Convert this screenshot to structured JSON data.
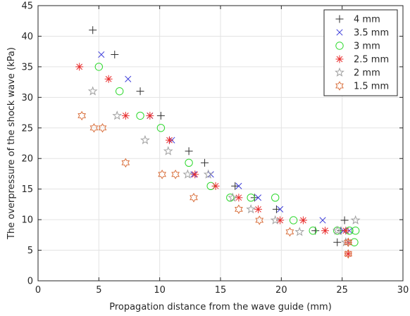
{
  "chart_data": {
    "type": "scatter",
    "title": "",
    "xlabel": "Propagation distance from the wave guide (mm)",
    "ylabel": "The overpressure of the shock wave (kPa)",
    "xlim": [
      0,
      30
    ],
    "ylim": [
      0,
      45
    ],
    "xticks": [
      0,
      5,
      10,
      15,
      20,
      25,
      30
    ],
    "yticks": [
      0,
      5,
      10,
      15,
      20,
      25,
      30,
      35,
      40,
      45
    ],
    "grid": true,
    "legend_position": "top-right",
    "series": [
      {
        "name": "4 mm",
        "marker": "plus",
        "color": "#2f2f2f",
        "points": [
          [
            4.5,
            41
          ],
          [
            6.3,
            37
          ],
          [
            8.4,
            31
          ],
          [
            10.1,
            27
          ],
          [
            12.4,
            21.2
          ],
          [
            13.7,
            19.3
          ],
          [
            16.2,
            15.5
          ],
          [
            17.8,
            13.6
          ],
          [
            19.6,
            11.7
          ],
          [
            22.8,
            8.2
          ],
          [
            24.6,
            6.3
          ],
          [
            24.9,
            8.2
          ],
          [
            25.2,
            9.9
          ]
        ]
      },
      {
        "name": "3.5 mm",
        "marker": "x",
        "color": "#3b3bd9",
        "points": [
          [
            5.2,
            37
          ],
          [
            7.4,
            33
          ],
          [
            9.2,
            27
          ],
          [
            11.0,
            23
          ],
          [
            12.8,
            17.4
          ],
          [
            14.2,
            17.4
          ],
          [
            16.5,
            15.5
          ],
          [
            18.1,
            13.6
          ],
          [
            19.9,
            11.7
          ],
          [
            23.4,
            9.9
          ],
          [
            25.1,
            8.2
          ],
          [
            25.6,
            8.2
          ]
        ]
      },
      {
        "name": "3 mm",
        "marker": "circle",
        "color": "#2fd92f",
        "points": [
          [
            5.0,
            35
          ],
          [
            6.7,
            31
          ],
          [
            8.4,
            27
          ],
          [
            10.1,
            25
          ],
          [
            12.4,
            19.3
          ],
          [
            14.2,
            15.5
          ],
          [
            15.8,
            13.6
          ],
          [
            17.5,
            13.6
          ],
          [
            19.5,
            13.6
          ],
          [
            21.0,
            9.9
          ],
          [
            22.6,
            8.2
          ],
          [
            24.6,
            8.2
          ],
          [
            25.6,
            8.2
          ],
          [
            26.1,
            8.2
          ],
          [
            26.0,
            6.3
          ]
        ]
      },
      {
        "name": "2.5 mm",
        "marker": "asterisk",
        "color": "#e82c2c",
        "points": [
          [
            3.4,
            35
          ],
          [
            5.8,
            33
          ],
          [
            7.2,
            27
          ],
          [
            9.2,
            27
          ],
          [
            10.8,
            23
          ],
          [
            12.9,
            17.4
          ],
          [
            14.6,
            15.5
          ],
          [
            16.5,
            13.6
          ],
          [
            18.1,
            11.7
          ],
          [
            19.9,
            9.9
          ],
          [
            21.8,
            9.9
          ],
          [
            23.6,
            8.2
          ],
          [
            25.3,
            8.2
          ],
          [
            25.5,
            6.3
          ],
          [
            25.5,
            4.4
          ]
        ]
      },
      {
        "name": "2 mm",
        "marker": "star",
        "color": "#a0a0a0",
        "points": [
          [
            4.5,
            31
          ],
          [
            6.5,
            27
          ],
          [
            8.8,
            23
          ],
          [
            10.7,
            21.2
          ],
          [
            12.3,
            17.4
          ],
          [
            14.0,
            17.4
          ],
          [
            16.0,
            13.6
          ],
          [
            17.5,
            11.7
          ],
          [
            19.5,
            9.9
          ],
          [
            21.5,
            8.0
          ],
          [
            24.6,
            8.2
          ],
          [
            26.1,
            9.9
          ],
          [
            25.3,
            6.3
          ]
        ]
      },
      {
        "name": "1.5 mm",
        "marker": "hexagram",
        "color": "#d9703d",
        "points": [
          [
            3.6,
            27
          ],
          [
            4.6,
            25
          ],
          [
            5.3,
            25
          ],
          [
            7.2,
            19.3
          ],
          [
            10.2,
            17.4
          ],
          [
            11.3,
            17.4
          ],
          [
            12.8,
            13.6
          ],
          [
            16.5,
            11.7
          ],
          [
            18.2,
            9.9
          ],
          [
            20.7,
            8.0
          ],
          [
            25.5,
            6.3
          ],
          [
            25.5,
            4.4
          ]
        ]
      }
    ]
  }
}
